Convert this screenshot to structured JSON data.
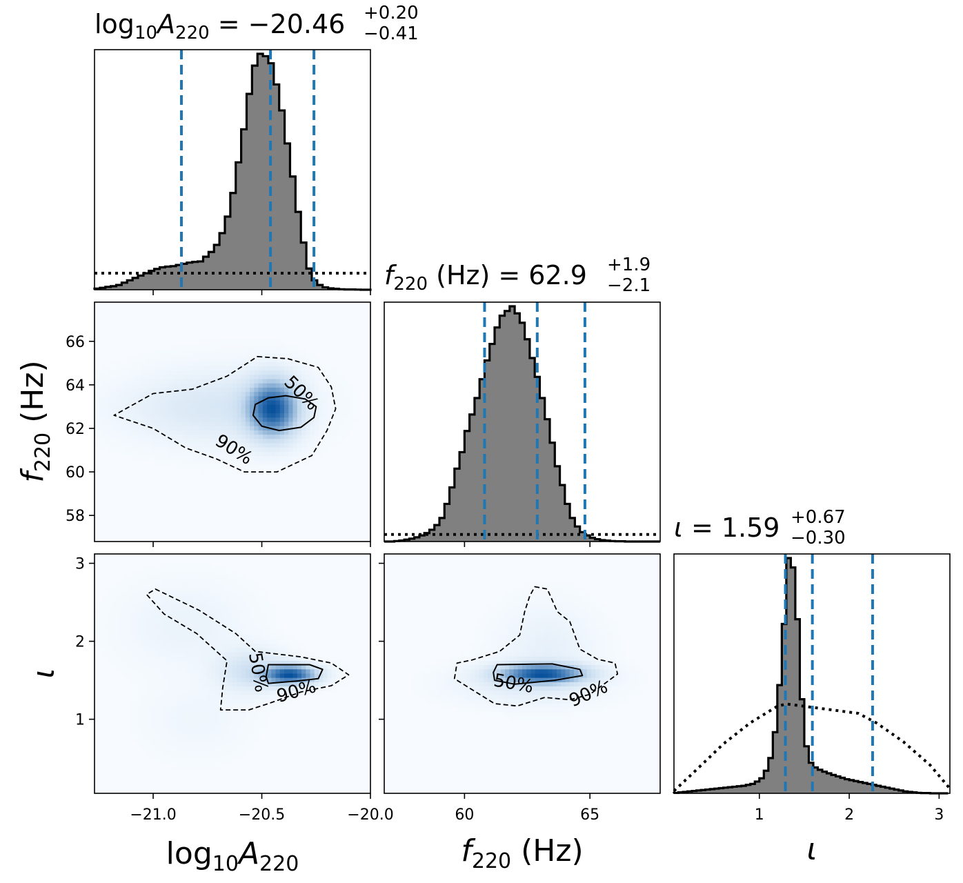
{
  "chart_data": {
    "type": "corner",
    "parameters": [
      {
        "key": "logA",
        "label_base": "log",
        "label_base_sub": "10",
        "label_main": "A",
        "label_main_sub": "220",
        "label_units": "",
        "range": [
          -21.27,
          -20.0
        ],
        "ticks": [
          "−21.0",
          "−20.5",
          "−20.0"
        ],
        "tick_values": [
          -21.0,
          -20.5,
          -20.0
        ],
        "title_value": "−20.46",
        "title_plus": "+0.20",
        "title_minus": "−0.41",
        "median": -20.46,
        "lower": -20.87,
        "upper": -20.26
      },
      {
        "key": "f",
        "label_base": "",
        "label_base_sub": "",
        "label_main": "f",
        "label_main_sub": "220",
        "label_units": "(Hz)",
        "range": [
          56.8,
          67.8
        ],
        "ticks": [
          "60",
          "65"
        ],
        "tick_values": [
          60,
          65
        ],
        "y_ticks": [
          "58",
          "60",
          "62",
          "64",
          "66"
        ],
        "y_tick_values": [
          58,
          60,
          62,
          64,
          66
        ],
        "title_value": "62.9",
        "title_plus": "+1.9",
        "title_minus": "−2.1",
        "median": 62.9,
        "lower": 60.8,
        "upper": 64.8
      },
      {
        "key": "iota",
        "label_base": "",
        "label_base_sub": "",
        "label_main": "ι",
        "label_main_sub": "",
        "label_units": "",
        "range": [
          0.05,
          3.12
        ],
        "ticks": [
          "1",
          "2",
          "3"
        ],
        "tick_values": [
          1,
          2,
          3
        ],
        "title_value": "1.59",
        "title_plus": "+0.67",
        "title_minus": "−0.30",
        "median": 1.59,
        "lower": 1.29,
        "upper": 2.26
      }
    ],
    "histograms": {
      "logA": {
        "edges_start": -21.27,
        "edges_step": 0.025,
        "density": [
          0.005,
          0.008,
          0.012,
          0.015,
          0.02,
          0.03,
          0.04,
          0.05,
          0.06,
          0.07,
          0.08,
          0.088,
          0.095,
          0.098,
          0.1,
          0.105,
          0.11,
          0.115,
          0.118,
          0.12,
          0.14,
          0.16,
          0.19,
          0.24,
          0.31,
          0.41,
          0.54,
          0.68,
          0.83,
          0.95,
          1.0,
          0.99,
          0.96,
          0.87,
          0.76,
          0.62,
          0.48,
          0.33,
          0.2,
          0.09,
          0.04,
          0.02,
          0.01,
          0.006,
          0.004,
          0.002,
          0.001,
          0.001,
          0.0005,
          0.0,
          0.0
        ]
      },
      "f": {
        "edges_start": 56.8,
        "edges_step": 0.2,
        "density": [
          0.0,
          0.0,
          0.002,
          0.004,
          0.008,
          0.012,
          0.018,
          0.026,
          0.036,
          0.05,
          0.07,
          0.1,
          0.16,
          0.23,
          0.31,
          0.38,
          0.47,
          0.54,
          0.61,
          0.69,
          0.77,
          0.84,
          0.91,
          0.96,
          0.98,
          1.0,
          0.97,
          0.93,
          0.86,
          0.78,
          0.7,
          0.61,
          0.52,
          0.42,
          0.32,
          0.24,
          0.16,
          0.1,
          0.064,
          0.04,
          0.026,
          0.016,
          0.01,
          0.006,
          0.004,
          0.002,
          0.001,
          0.001,
          0.0,
          0.0,
          0.0,
          0.0,
          0.0,
          0.0,
          0.0
        ]
      },
      "iota": {
        "edges_start": 0.05,
        "edges_step": 0.05,
        "density": [
          0.002,
          0.004,
          0.006,
          0.008,
          0.01,
          0.012,
          0.014,
          0.016,
          0.018,
          0.02,
          0.022,
          0.024,
          0.026,
          0.028,
          0.03,
          0.032,
          0.036,
          0.04,
          0.05,
          0.064,
          0.096,
          0.15,
          0.26,
          0.46,
          0.72,
          1.0,
          0.96,
          0.74,
          0.4,
          0.2,
          0.13,
          0.11,
          0.1,
          0.092,
          0.085,
          0.078,
          0.072,
          0.066,
          0.06,
          0.056,
          0.052,
          0.048,
          0.044,
          0.04,
          0.036,
          0.032,
          0.028,
          0.024,
          0.02,
          0.016,
          0.012,
          0.008,
          0.006,
          0.004,
          0.002,
          0.001,
          0.001,
          0.0,
          0.0,
          0.0,
          0.0
        ]
      }
    },
    "priors": {
      "logA": 0.07,
      "f": 0.03,
      "iota": [
        [
          0.05,
          0.01
        ],
        [
          0.3,
          0.1
        ],
        [
          0.6,
          0.21
        ],
        [
          0.9,
          0.3
        ],
        [
          1.2,
          0.37
        ],
        [
          1.3,
          0.38
        ],
        [
          1.5,
          0.37
        ],
        [
          1.7,
          0.36
        ],
        [
          1.9,
          0.35
        ],
        [
          2.1,
          0.34
        ],
        [
          2.3,
          0.3
        ],
        [
          2.6,
          0.22
        ],
        [
          2.9,
          0.12
        ],
        [
          3.12,
          0.02
        ]
      ]
    },
    "pairs": [
      {
        "x": "logA",
        "y": "f",
        "blobs": [
          {
            "cx": -20.45,
            "cy": 62.9,
            "sx": 0.075,
            "sy": 0.85,
            "w": 1.0
          },
          {
            "cx": -20.65,
            "cy": 63.0,
            "sx": 0.22,
            "sy": 1.1,
            "w": 0.14
          },
          {
            "cx": -20.95,
            "cy": 62.9,
            "sx": 0.2,
            "sy": 0.9,
            "w": 0.05
          }
        ],
        "contour50": [
          [
            -20.39,
            63.5
          ],
          [
            -20.3,
            63.35
          ],
          [
            -20.25,
            63.0
          ],
          [
            -20.26,
            62.5
          ],
          [
            -20.32,
            62.05
          ],
          [
            -20.42,
            61.9
          ],
          [
            -20.5,
            62.1
          ],
          [
            -20.54,
            62.6
          ],
          [
            -20.53,
            63.1
          ],
          [
            -20.47,
            63.4
          ]
        ],
        "contour90": [
          [
            -20.52,
            65.3
          ],
          [
            -20.38,
            65.2
          ],
          [
            -20.24,
            64.8
          ],
          [
            -20.18,
            63.9
          ],
          [
            -20.16,
            62.9
          ],
          [
            -20.2,
            61.9
          ],
          [
            -20.27,
            60.75
          ],
          [
            -20.43,
            60.0
          ],
          [
            -20.58,
            60.0
          ],
          [
            -20.71,
            60.6
          ],
          [
            -20.85,
            61.1
          ],
          [
            -21.0,
            62.0
          ],
          [
            -21.18,
            62.6
          ],
          [
            -21.0,
            63.6
          ],
          [
            -20.82,
            63.8
          ],
          [
            -20.66,
            64.4
          ]
        ],
        "labels": [
          {
            "text": "50%",
            "x": -20.32,
            "y": 63.6,
            "rot": 45
          },
          {
            "text": "90%",
            "x": -20.63,
            "y": 61.0,
            "rot": 32
          }
        ]
      },
      {
        "x": "logA",
        "y": "iota",
        "blobs": [
          {
            "cx": -20.37,
            "cy": 1.57,
            "sx": 0.08,
            "sy": 0.08,
            "w": 1.0
          },
          {
            "cx": -20.55,
            "cy": 1.62,
            "sx": 0.1,
            "sy": 0.18,
            "w": 0.2
          },
          {
            "cx": -20.85,
            "cy": 2.2,
            "sx": 0.18,
            "sy": 0.35,
            "w": 0.05
          },
          {
            "cx": -20.8,
            "cy": 1.0,
            "sx": 0.15,
            "sy": 0.3,
            "w": 0.03
          }
        ],
        "contour50": [
          [
            -20.47,
            1.7
          ],
          [
            -20.28,
            1.7
          ],
          [
            -20.22,
            1.64
          ],
          [
            -20.24,
            1.52
          ],
          [
            -20.34,
            1.49
          ],
          [
            -20.47,
            1.46
          ],
          [
            -20.48,
            1.55
          ]
        ],
        "contour90": [
          [
            -20.99,
            2.67
          ],
          [
            -20.79,
            2.4
          ],
          [
            -20.62,
            2.1
          ],
          [
            -20.53,
            1.87
          ],
          [
            -20.32,
            1.8
          ],
          [
            -20.18,
            1.72
          ],
          [
            -20.1,
            1.57
          ],
          [
            -20.18,
            1.43
          ],
          [
            -20.32,
            1.35
          ],
          [
            -20.47,
            1.2
          ],
          [
            -20.56,
            1.12
          ],
          [
            -20.69,
            1.12
          ],
          [
            -20.68,
            1.4
          ],
          [
            -20.66,
            1.75
          ],
          [
            -20.8,
            2.1
          ],
          [
            -20.95,
            2.35
          ],
          [
            -21.03,
            2.6
          ]
        ],
        "labels": [
          {
            "text": "50%",
            "x": -20.52,
            "y": 1.6,
            "rot": 80
          },
          {
            "text": "90%",
            "x": -20.34,
            "y": 1.35,
            "rot": -16
          }
        ]
      },
      {
        "x": "f",
        "y": "iota",
        "blobs": [
          {
            "cx": 63.1,
            "cy": 1.58,
            "sx": 1.1,
            "sy": 0.08,
            "w": 1.0
          },
          {
            "cx": 63.3,
            "cy": 1.9,
            "sx": 1.2,
            "sy": 0.35,
            "w": 0.07
          },
          {
            "cx": 62.5,
            "cy": 1.45,
            "sx": 1.8,
            "sy": 0.16,
            "w": 0.1
          }
        ],
        "contour50": [
          [
            61.3,
            1.7
          ],
          [
            63.5,
            1.71
          ],
          [
            64.6,
            1.64
          ],
          [
            64.7,
            1.56
          ],
          [
            63.6,
            1.5
          ],
          [
            62.0,
            1.45
          ],
          [
            61.2,
            1.5
          ],
          [
            61.15,
            1.6
          ]
        ],
        "contour90": [
          [
            62.8,
            2.7
          ],
          [
            63.3,
            2.67
          ],
          [
            63.7,
            2.38
          ],
          [
            64.2,
            2.25
          ],
          [
            64.6,
            1.9
          ],
          [
            65.3,
            1.77
          ],
          [
            66.0,
            1.72
          ],
          [
            66.1,
            1.58
          ],
          [
            65.6,
            1.46
          ],
          [
            65.0,
            1.32
          ],
          [
            64.2,
            1.25
          ],
          [
            63.2,
            1.28
          ],
          [
            62.1,
            1.17
          ],
          [
            61.2,
            1.2
          ],
          [
            60.2,
            1.4
          ],
          [
            59.6,
            1.52
          ],
          [
            59.7,
            1.72
          ],
          [
            60.3,
            1.76
          ],
          [
            61.4,
            1.87
          ],
          [
            62.2,
            2.08
          ],
          [
            62.4,
            2.38
          ],
          [
            62.6,
            2.58
          ]
        ],
        "labels": [
          {
            "text": "50%",
            "x": 61.95,
            "y": 1.45,
            "rot": 10
          },
          {
            "text": "90%",
            "x": 64.95,
            "y": 1.32,
            "rot": -24
          }
        ]
      }
    ],
    "colors": {
      "hist_fill": "#808080",
      "hist_edge": "#000000",
      "quantile": "#1f77b4",
      "cmap_low": "#f7fbff",
      "cmap_high": "#08519c"
    }
  }
}
